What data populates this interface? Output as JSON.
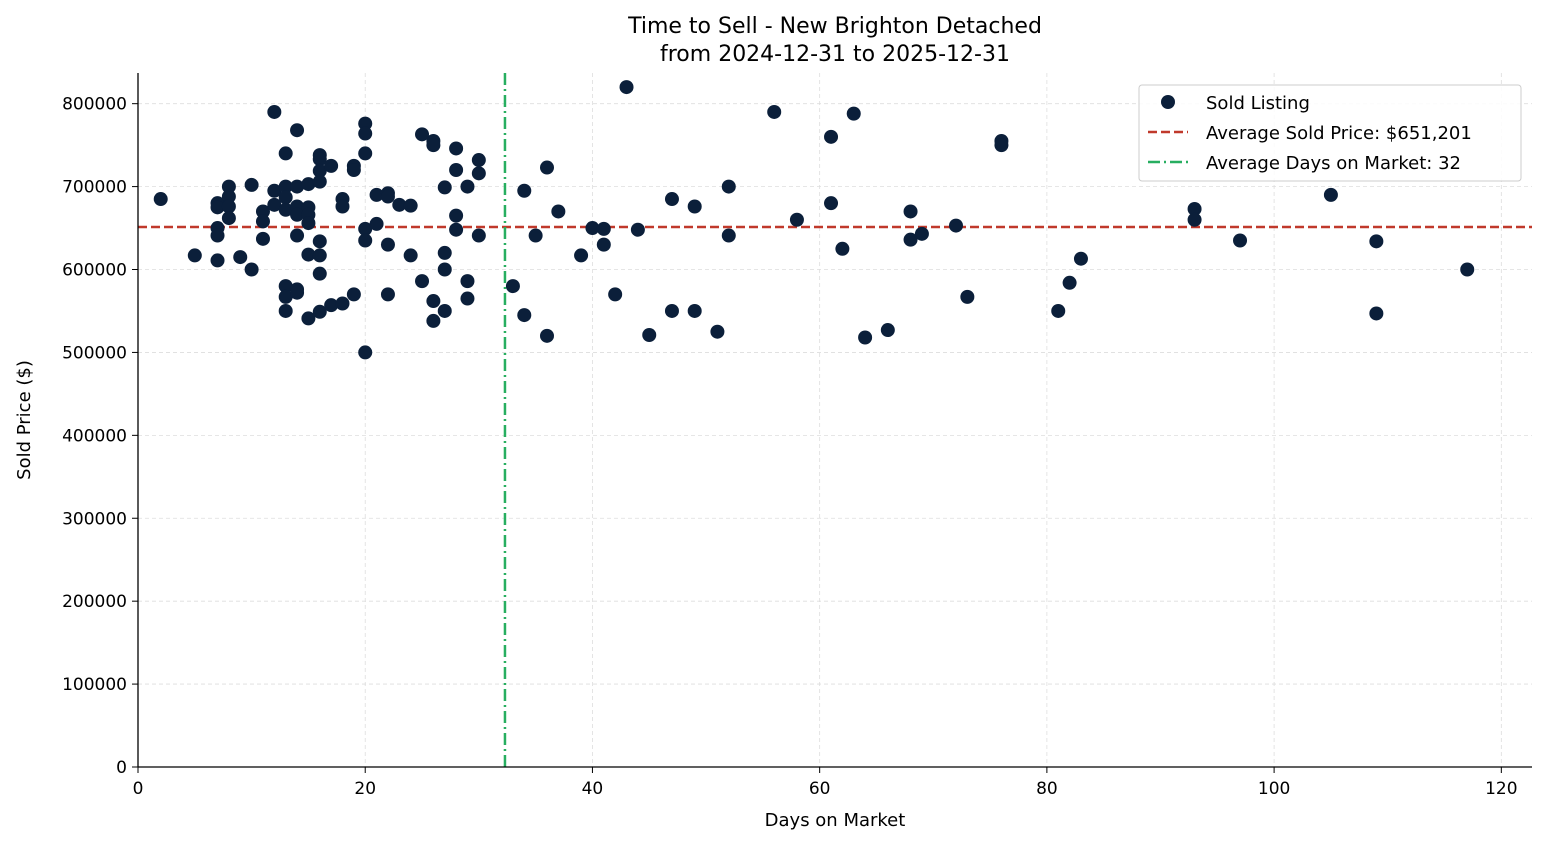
{
  "chart_data": {
    "type": "scatter",
    "title": "Time to Sell - New Brighton Detached",
    "subtitle": "from 2024-12-31 to 2025-12-31",
    "xlabel": "Days on Market",
    "ylabel": "Sold Price ($)",
    "xlim": [
      0,
      122.7
    ],
    "ylim": [
      0,
      837000
    ],
    "xticks": [
      0,
      20,
      40,
      60,
      80,
      100,
      120
    ],
    "yticks": [
      0,
      100000,
      200000,
      300000,
      400000,
      500000,
      600000,
      700000,
      800000
    ],
    "grid": true,
    "legend_position": "top-right",
    "colors": {
      "points": "#0b1f3a",
      "avg_price": "#c0392b",
      "avg_days": "#27ae60"
    },
    "legend": [
      "Sold Listing",
      "Average Sold Price: $651,201",
      "Average Days on Market: 32"
    ],
    "avg_price": 651201,
    "avg_days": 32.3,
    "series": [
      {
        "name": "Sold Listing",
        "points": [
          [
            2,
            685000
          ],
          [
            5,
            617000
          ],
          [
            7,
            680000
          ],
          [
            7,
            675000
          ],
          [
            7,
            650000
          ],
          [
            7,
            641000
          ],
          [
            7,
            611000
          ],
          [
            8,
            700000
          ],
          [
            8,
            688000
          ],
          [
            8,
            676000
          ],
          [
            8,
            662000
          ],
          [
            9,
            615000
          ],
          [
            10,
            702000
          ],
          [
            10,
            600000
          ],
          [
            11,
            670000
          ],
          [
            11,
            658000
          ],
          [
            11,
            637000
          ],
          [
            12,
            790000
          ],
          [
            12,
            695000
          ],
          [
            12,
            678000
          ],
          [
            13,
            740000
          ],
          [
            13,
            700000
          ],
          [
            13,
            687000
          ],
          [
            13,
            672000
          ],
          [
            13,
            580000
          ],
          [
            13,
            567000
          ],
          [
            13,
            550000
          ],
          [
            14,
            768000
          ],
          [
            14,
            700000
          ],
          [
            14,
            676000
          ],
          [
            14,
            666000
          ],
          [
            14,
            641000
          ],
          [
            14,
            576000
          ],
          [
            14,
            572000
          ],
          [
            15,
            703000
          ],
          [
            15,
            675000
          ],
          [
            15,
            666000
          ],
          [
            15,
            656000
          ],
          [
            15,
            618000
          ],
          [
            15,
            541000
          ],
          [
            16,
            738000
          ],
          [
            16,
            733000
          ],
          [
            16,
            719000
          ],
          [
            16,
            706000
          ],
          [
            16,
            634000
          ],
          [
            16,
            617000
          ],
          [
            16,
            595000
          ],
          [
            16,
            549000
          ],
          [
            17,
            725000
          ],
          [
            17,
            557000
          ],
          [
            18,
            685000
          ],
          [
            18,
            676000
          ],
          [
            18,
            559000
          ],
          [
            19,
            725000
          ],
          [
            19,
            720000
          ],
          [
            19,
            570000
          ],
          [
            20,
            776000
          ],
          [
            20,
            764000
          ],
          [
            20,
            740000
          ],
          [
            20,
            649000
          ],
          [
            20,
            635000
          ],
          [
            20,
            500000
          ],
          [
            21,
            690000
          ],
          [
            21,
            655000
          ],
          [
            22,
            692000
          ],
          [
            22,
            688000
          ],
          [
            22,
            630000
          ],
          [
            22,
            570000
          ],
          [
            23,
            678000
          ],
          [
            24,
            677000
          ],
          [
            24,
            617000
          ],
          [
            25,
            763000
          ],
          [
            25,
            586000
          ],
          [
            26,
            755000
          ],
          [
            26,
            750000
          ],
          [
            26,
            562000
          ],
          [
            26,
            538000
          ],
          [
            27,
            699000
          ],
          [
            27,
            620000
          ],
          [
            27,
            600000
          ],
          [
            27,
            550000
          ],
          [
            28,
            746000
          ],
          [
            28,
            720000
          ],
          [
            28,
            665000
          ],
          [
            28,
            648000
          ],
          [
            29,
            700000
          ],
          [
            29,
            586000
          ],
          [
            29,
            565000
          ],
          [
            30,
            732000
          ],
          [
            30,
            716000
          ],
          [
            30,
            641000
          ],
          [
            33,
            580000
          ],
          [
            34,
            695000
          ],
          [
            34,
            545000
          ],
          [
            35,
            641000
          ],
          [
            36,
            723000
          ],
          [
            36,
            520000
          ],
          [
            37,
            670000
          ],
          [
            39,
            617000
          ],
          [
            40,
            650000
          ],
          [
            41,
            649000
          ],
          [
            41,
            630000
          ],
          [
            42,
            570000
          ],
          [
            43,
            820000
          ],
          [
            44,
            648000
          ],
          [
            45,
            521000
          ],
          [
            47,
            685000
          ],
          [
            47,
            550000
          ],
          [
            49,
            676000
          ],
          [
            49,
            550000
          ],
          [
            51,
            525000
          ],
          [
            52,
            700000
          ],
          [
            52,
            641000
          ],
          [
            56,
            790000
          ],
          [
            58,
            660000
          ],
          [
            61,
            760000
          ],
          [
            61,
            680000
          ],
          [
            62,
            625000
          ],
          [
            63,
            788000
          ],
          [
            64,
            518000
          ],
          [
            66,
            527000
          ],
          [
            68,
            670000
          ],
          [
            68,
            636000
          ],
          [
            69,
            643000
          ],
          [
            72,
            653000
          ],
          [
            73,
            567000
          ],
          [
            76,
            755000
          ],
          [
            76,
            750000
          ],
          [
            81,
            550000
          ],
          [
            82,
            584000
          ],
          [
            83,
            613000
          ],
          [
            93,
            673000
          ],
          [
            93,
            660000
          ],
          [
            97,
            635000
          ],
          [
            105,
            690000
          ],
          [
            109,
            634000
          ],
          [
            109,
            547000
          ],
          [
            117,
            600000
          ]
        ]
      }
    ]
  }
}
